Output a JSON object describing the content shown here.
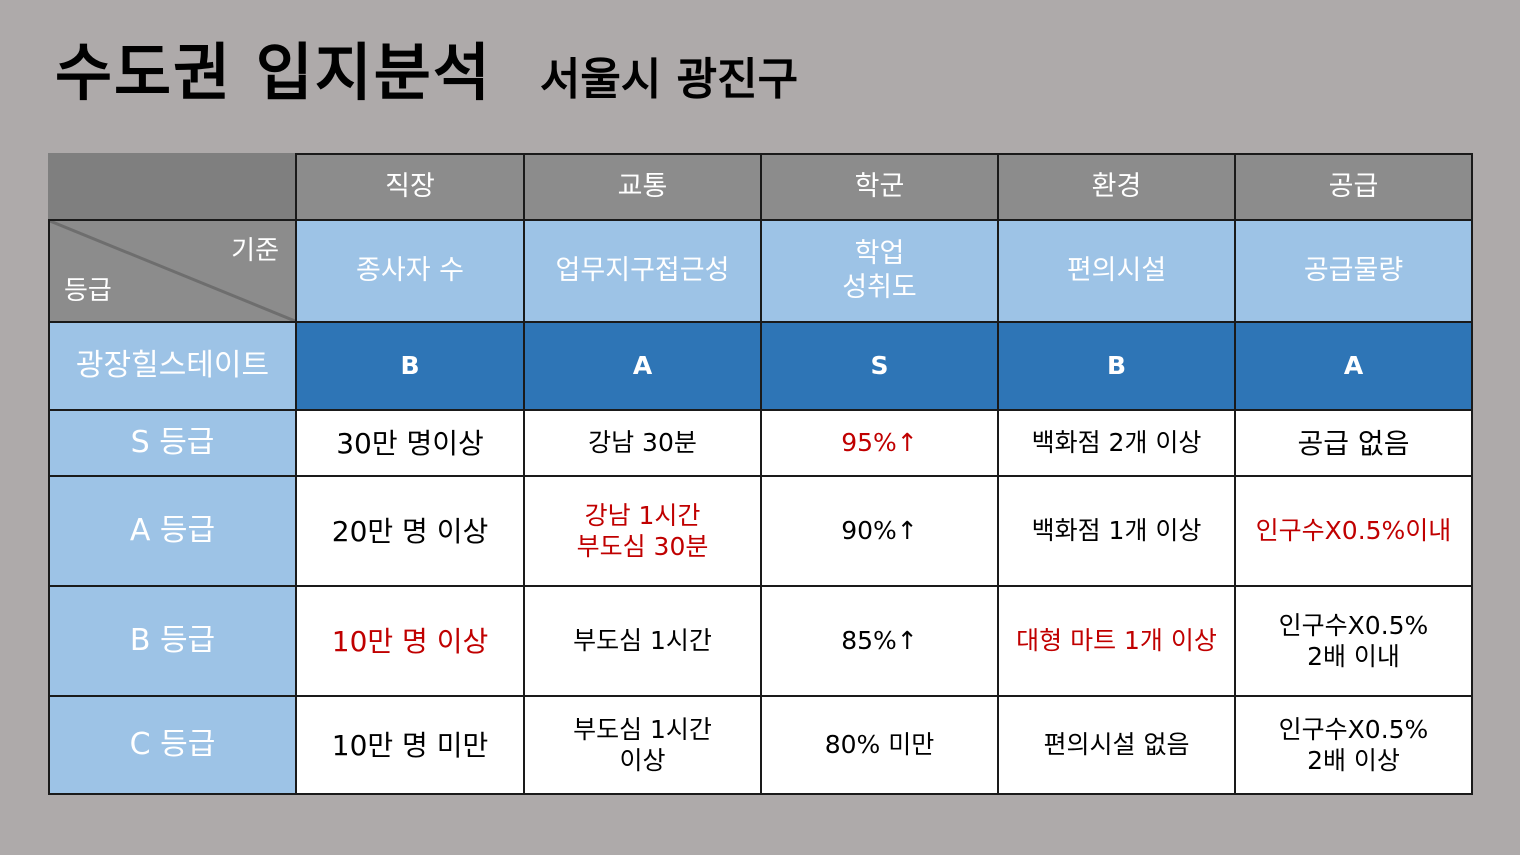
{
  "title": {
    "main": "수도권 입지분석",
    "sub": "서울시 광진구"
  },
  "colors": {
    "header_gray": "#8c8c8c",
    "light_blue": "#9dc3e6",
    "dark_blue": "#2e75b6",
    "highlight_red": "#c00000"
  },
  "corner": {
    "top_label": "기준",
    "bottom_label": "등급"
  },
  "categories": [
    "직장",
    "교통",
    "학군",
    "환경",
    "공급"
  ],
  "criteria": [
    [
      "종사자 수"
    ],
    [
      "업무지구접근성"
    ],
    [
      "학업",
      "성취도"
    ],
    [
      "편의시설"
    ],
    [
      "공급물량"
    ]
  ],
  "apartment": {
    "name": "광장힐스테이트",
    "ratings": [
      "B",
      "A",
      "S",
      "B",
      "A"
    ]
  },
  "grades": [
    {
      "label": "S 등급",
      "cells": [
        [
          "30만 명이상"
        ],
        [
          "강남 30분"
        ],
        [
          "95%↑"
        ],
        [
          "백화점 2개 이상"
        ],
        [
          "공급 없음"
        ]
      ]
    },
    {
      "label": "A 등급",
      "cells": [
        [
          "20만 명 이상"
        ],
        [
          "강남 1시간",
          "부도심 30분"
        ],
        [
          "90%↑"
        ],
        [
          "백화점 1개 이상"
        ],
        [
          "인구수X0.5%이내"
        ]
      ]
    },
    {
      "label": "B 등급",
      "cells": [
        [
          "10만 명 이상"
        ],
        [
          "부도심 1시간"
        ],
        [
          "85%↑"
        ],
        [
          "대형 마트 1개 이상"
        ],
        [
          "인구수X0.5%",
          "2배 이내"
        ]
      ]
    },
    {
      "label": "C 등급",
      "cells": [
        [
          "10만 명 미만"
        ],
        [
          "부도심 1시간",
          "이상"
        ],
        [
          "80% 미만"
        ],
        [
          "편의시설 없음"
        ],
        [
          "인구수X0.5%",
          "2배 이상"
        ]
      ]
    }
  ]
}
